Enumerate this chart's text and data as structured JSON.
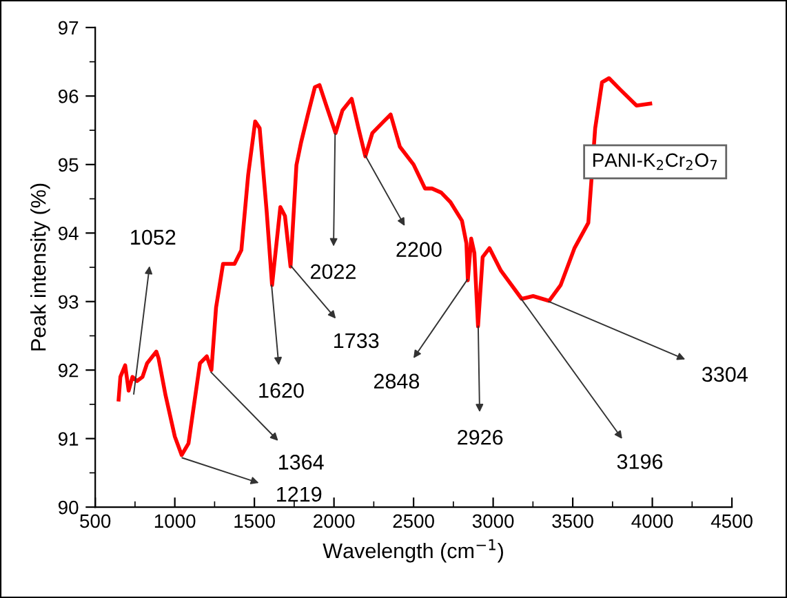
{
  "chart_data": {
    "type": "line",
    "xlabel": "Wavelength (cm$^{−1}$)",
    "ylabel": "Peak intensity (%)",
    "xlim": [
      500,
      4500
    ],
    "xticks": [
      500,
      1000,
      1500,
      2000,
      2500,
      3000,
      3500,
      4000,
      4500
    ],
    "ylim": [
      90,
      97
    ],
    "yticks": [
      90,
      91,
      92,
      93,
      94,
      95,
      96,
      97
    ],
    "grid": false,
    "legend": "right",
    "marker": "none",
    "line_style": "solid",
    "series": [
      {
        "name": "PANI-K$_{2}$Cr$_{2}$O$_{7}$",
        "color": "#ff0000",
        "x": [
          647,
          658,
          688,
          710,
          734,
          763,
          797,
          826,
          884,
          898,
          942,
          1000,
          1043,
          1086,
          1158,
          1201,
          1230,
          1259,
          1303,
          1375,
          1418,
          1461,
          1505,
          1533,
          1577,
          1611,
          1663,
          1692,
          1727,
          1764,
          1793,
          1836,
          1880,
          1909,
          1952,
          2010,
          2053,
          2111,
          2154,
          2197,
          2241,
          2313,
          2356,
          2414,
          2500,
          2572,
          2616,
          2674,
          2732,
          2804,
          2832,
          2841,
          2862,
          2882,
          2905,
          2934,
          2977,
          3049,
          3179,
          3251,
          3352,
          3424,
          3511,
          3598,
          3641,
          3684,
          3728,
          3800,
          3901,
          3987
        ],
        "values": [
          91.57,
          91.9,
          92.07,
          91.7,
          91.9,
          91.84,
          91.9,
          92.1,
          92.27,
          92.17,
          91.63,
          91.03,
          90.76,
          90.93,
          92.1,
          92.2,
          92.0,
          92.91,
          93.55,
          93.55,
          93.75,
          94.85,
          95.63,
          95.53,
          94.32,
          93.24,
          94.38,
          94.25,
          93.51,
          94.99,
          95.32,
          95.73,
          96.13,
          96.16,
          95.86,
          95.46,
          95.79,
          95.96,
          95.53,
          95.12,
          95.46,
          95.63,
          95.73,
          95.26,
          95.0,
          94.65,
          94.65,
          94.59,
          94.45,
          94.18,
          93.85,
          93.31,
          93.92,
          93.71,
          92.64,
          93.65,
          93.78,
          93.45,
          93.04,
          93.08,
          93.01,
          93.24,
          93.78,
          94.15,
          95.53,
          96.2,
          96.26,
          96.09,
          95.86,
          95.89
        ]
      }
    ],
    "annotations": [
      {
        "text": "1052",
        "x": 742,
        "y": 91.65
      },
      {
        "text": "1219",
        "x": 1046,
        "y": 90.72
      },
      {
        "text": "1364",
        "x": 1227,
        "y": 91.97
      },
      {
        "text": "1620",
        "x": 1608,
        "y": 93.24
      },
      {
        "text": "1733",
        "x": 1730,
        "y": 93.52
      },
      {
        "text": "2022",
        "x": 2007,
        "y": 95.45
      },
      {
        "text": "2200",
        "x": 2197,
        "y": 95.13
      },
      {
        "text": "2848",
        "x": 2838,
        "y": 93.32
      },
      {
        "text": "2926",
        "x": 2906,
        "y": 92.64
      },
      {
        "text": "3196",
        "x": 3176,
        "y": 93.04
      },
      {
        "text": "3304",
        "x": 3349,
        "y": 93.0
      }
    ]
  }
}
